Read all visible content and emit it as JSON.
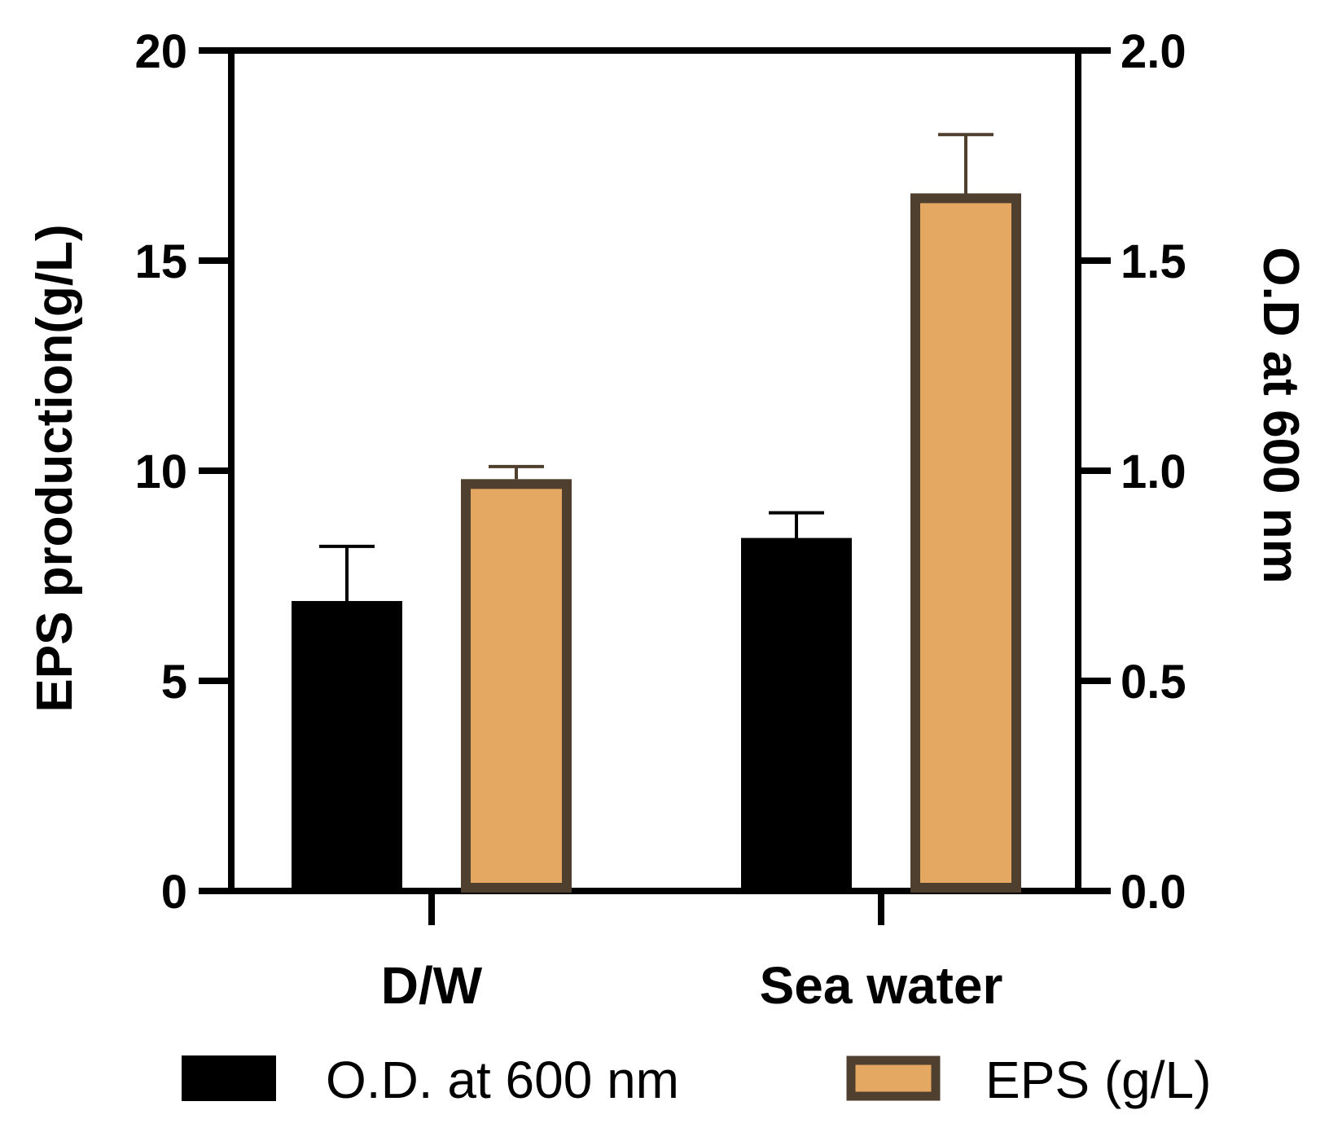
{
  "chart_data": {
    "type": "bar",
    "categories": [
      "D/W",
      "Sea water"
    ],
    "left_axis": {
      "label": "EPS production(g/L)",
      "ylim": [
        0,
        20
      ],
      "ticks": [
        0,
        5,
        10,
        15,
        20
      ],
      "tick_labels": [
        "0",
        "5",
        "10",
        "15",
        "20"
      ]
    },
    "right_axis": {
      "label": "O.D at 600 nm",
      "ylim": [
        0.0,
        2.0
      ],
      "ticks": [
        0.0,
        0.5,
        1.0,
        1.5,
        2.0
      ],
      "tick_labels": [
        "0.0",
        "0.5",
        "1.0",
        "1.5",
        "2.0"
      ]
    },
    "series": [
      {
        "name": "O.D. at 600 nm",
        "axis": "right",
        "values": [
          0.69,
          0.84
        ],
        "errors": [
          0.13,
          0.06
        ],
        "fill": "#000000",
        "stroke": "#000000"
      },
      {
        "name": "EPS (g/L)",
        "axis": "left",
        "values": [
          9.8,
          16.6
        ],
        "errors": [
          0.3,
          1.4
        ],
        "fill": "#E5A862",
        "stroke": "#4F3F2E"
      }
    ],
    "legend": "bottom"
  }
}
